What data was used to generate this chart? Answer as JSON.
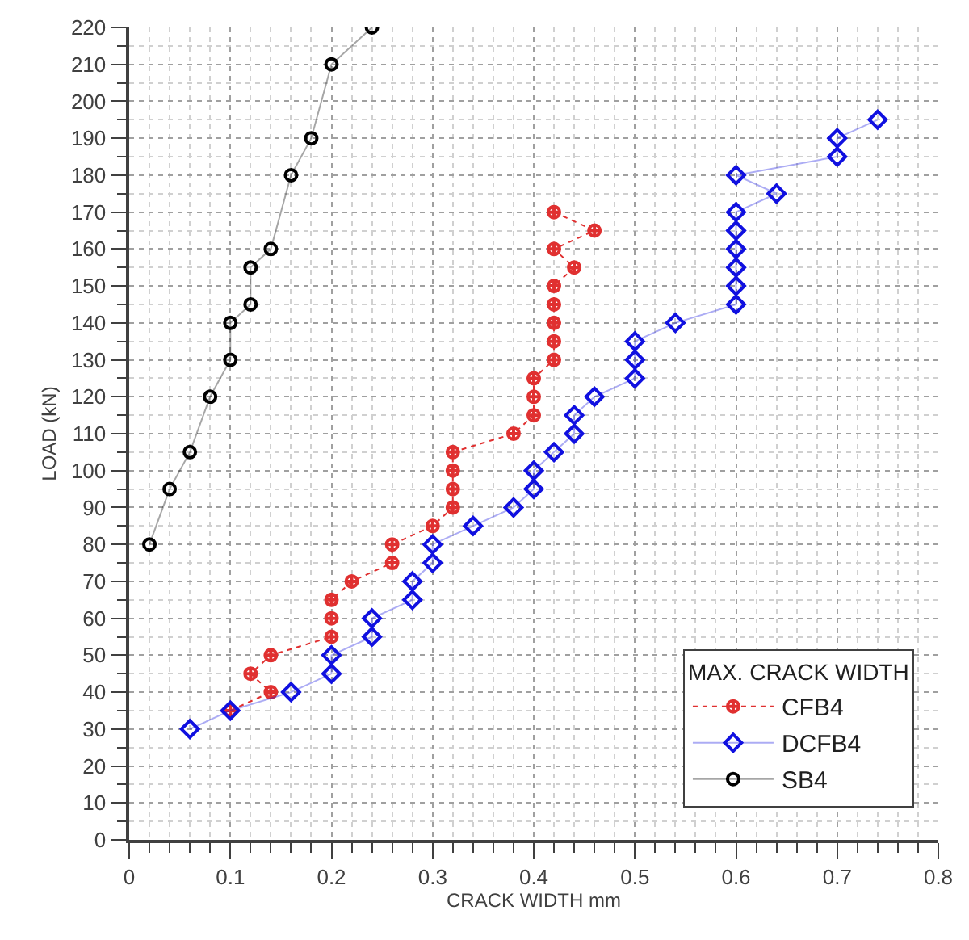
{
  "chart_data": {
    "type": "line",
    "xlabel": "CRACK WIDTH mm",
    "ylabel": "LOAD (kN)",
    "legend_title": "MAX. CRACK WIDTH",
    "xlim": [
      0,
      0.8
    ],
    "xticks": [
      0,
      0.1,
      0.2,
      0.3,
      0.4,
      0.5,
      0.6,
      0.7,
      0.8
    ],
    "ylim": [
      0,
      220
    ],
    "yticks": [
      0,
      10,
      20,
      30,
      40,
      50,
      60,
      70,
      80,
      90,
      100,
      110,
      120,
      130,
      140,
      150,
      160,
      170,
      180,
      190,
      200,
      210,
      220
    ],
    "grid": true,
    "legend": "bottom right",
    "series": [
      {
        "name": "CFB4",
        "color": "#e03030",
        "marker": "cross",
        "line_style": "dotted",
        "x": [
          0.1,
          0.14,
          0.12,
          0.14,
          0.2,
          0.2,
          0.2,
          0.22,
          0.26,
          0.26,
          0.3,
          0.32,
          0.32,
          0.32,
          0.32,
          0.38,
          0.4,
          0.4,
          0.4,
          0.42,
          0.42,
          0.42,
          0.42,
          0.42,
          0.44,
          0.42,
          0.46,
          0.42
        ],
        "values": [
          35,
          40,
          45,
          50,
          55,
          60,
          65,
          70,
          75,
          80,
          85,
          90,
          95,
          100,
          105,
          110,
          115,
          120,
          125,
          130,
          135,
          140,
          145,
          150,
          155,
          160,
          165,
          170
        ]
      },
      {
        "name": "DCFB4",
        "color": "#1010e0",
        "marker": "diamond",
        "line_style": "solid",
        "x": [
          0.06,
          0.1,
          0.16,
          0.2,
          0.2,
          0.24,
          0.24,
          0.28,
          0.28,
          0.3,
          0.3,
          0.34,
          0.38,
          0.4,
          0.4,
          0.42,
          0.44,
          0.44,
          0.46,
          0.5,
          0.5,
          0.5,
          0.54,
          0.6,
          0.6,
          0.6,
          0.6,
          0.6,
          0.6,
          0.64,
          0.6,
          0.7,
          0.7,
          0.74
        ],
        "values": [
          30,
          35,
          40,
          45,
          50,
          55,
          60,
          65,
          70,
          75,
          80,
          85,
          90,
          95,
          100,
          105,
          110,
          115,
          120,
          125,
          130,
          135,
          140,
          145,
          150,
          155,
          160,
          165,
          170,
          175,
          180,
          185,
          190,
          195
        ]
      },
      {
        "name": "SB4",
        "color": "#000000",
        "marker": "circle",
        "line_style": "solid",
        "x": [
          0.02,
          0.04,
          0.06,
          0.08,
          0.1,
          0.1,
          0.12,
          0.12,
          0.14,
          0.16,
          0.18,
          0.2,
          0.24
        ],
        "values": [
          80,
          95,
          105,
          120,
          130,
          140,
          145,
          155,
          160,
          180,
          190,
          210,
          220
        ]
      }
    ]
  }
}
